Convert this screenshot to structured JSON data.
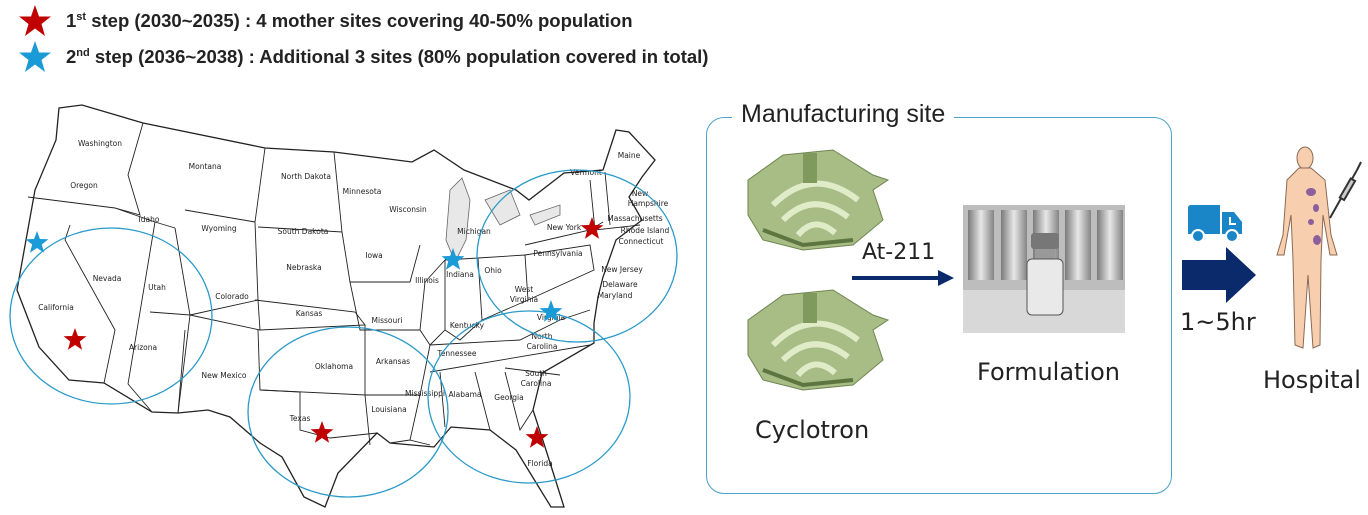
{
  "legend": [
    {
      "icon": "star-icon",
      "color": "#c00000",
      "num": "1",
      "sup": "st",
      "text": " step (2030~2035) : 4 mother sites covering 40-50% population"
    },
    {
      "icon": "star-icon",
      "color": "#1a9ad6",
      "num": "2",
      "sup": "nd",
      "text": " step (2036~2038) : Additional 3 sites (80% population covered in total)"
    }
  ],
  "map": {
    "states": [
      "Washington",
      "Oregon",
      "Idaho",
      "Montana",
      "North Dakota",
      "Minnesota",
      "Wisconsin",
      "Michigan",
      "South Dakota",
      "Wyoming",
      "Nevada",
      "Utah",
      "Colorado",
      "Nebraska",
      "Iowa",
      "Illinois",
      "Indiana",
      "Ohio",
      "Pennsylvania",
      "New York",
      "Kansas",
      "Missouri",
      "Kentucky",
      "West",
      "Virginia",
      "Virginia",
      "California",
      "Arizona",
      "New Mexico",
      "Oklahoma",
      "Arkansas",
      "Tennessee",
      "North",
      "Carolina",
      "South",
      "Carolina",
      "Georgia",
      "Alabama",
      "Mississippi",
      "Louisiana",
      "Texas",
      "Florida",
      "Maine",
      "Vermont",
      "New",
      "Hampshire",
      "Massachusetts",
      "Rhode Island",
      "Connecticut",
      "New Jersey",
      "Delaware",
      "Maryland"
    ],
    "sites": [
      {
        "step": 1,
        "location": "California"
      },
      {
        "step": 1,
        "location": "Texas"
      },
      {
        "step": 1,
        "location": "Florida"
      },
      {
        "step": 1,
        "location": "New York"
      },
      {
        "step": 2,
        "location": "Northern California"
      },
      {
        "step": 2,
        "location": "Indiana"
      },
      {
        "step": 2,
        "location": "Virginia"
      }
    ],
    "circle_color": "#2a9ac8",
    "step1_color": "#c00000",
    "step2_color": "#1a9ad6"
  },
  "process": {
    "box_title": "Manufacturing site",
    "cyclotron_label": "Cyclotron",
    "isotope_label": "At-211",
    "formulation_label": "Formulation",
    "transport_time": "1~5hr",
    "hospital_label": "Hospital",
    "arrow_color": "#0b2a6b",
    "truck_color": "#1a86c8"
  }
}
